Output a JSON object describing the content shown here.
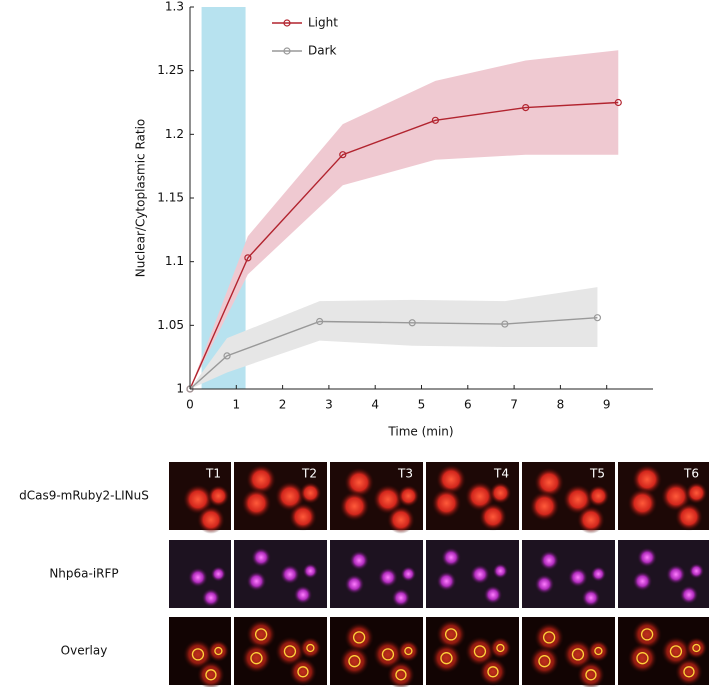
{
  "chart_data": {
    "type": "line",
    "xlabel": "Time (min)",
    "ylabel": "Nuclear/Cytoplasmic Ratio",
    "xlim": [
      0,
      10
    ],
    "xticks": [
      0,
      1,
      2,
      3,
      4,
      5,
      6,
      7,
      8,
      9
    ],
    "ylim": [
      1,
      1.3
    ],
    "yticks": [
      1,
      1.05,
      1.1,
      1.15,
      1.2,
      1.25,
      1.3
    ],
    "legend": "upper left",
    "light_span": [
      0.25,
      1.2
    ],
    "light_span_color": "#b7e2ef",
    "series": [
      {
        "name": "Light",
        "color": "#b2242f",
        "band_color": "#efc9d1",
        "x": [
          0,
          1.25,
          3.3,
          5.3,
          7.25,
          9.25
        ],
        "values": [
          1,
          1.103,
          1.184,
          1.211,
          1.221,
          1.225
        ],
        "lower": [
          1,
          1.09,
          1.16,
          1.18,
          1.184,
          1.184
        ],
        "upper": [
          1,
          1.12,
          1.208,
          1.242,
          1.258,
          1.266
        ]
      },
      {
        "name": "Dark",
        "color": "#999999",
        "band_color": "#e6e6e6",
        "x": [
          0,
          0.8,
          2.8,
          4.8,
          6.8,
          8.8
        ],
        "values": [
          1,
          1.026,
          1.053,
          1.052,
          1.051,
          1.056
        ],
        "lower": [
          1,
          1.013,
          1.038,
          1.034,
          1.033,
          1.033
        ],
        "upper": [
          1,
          1.04,
          1.069,
          1.07,
          1.069,
          1.08
        ]
      }
    ]
  },
  "image_panel": {
    "columns": [
      "T1",
      "T2",
      "T3",
      "T4",
      "T5",
      "T6"
    ],
    "rows": [
      "dCas9-mRuby2-LINuS",
      "Nhp6a-iRFP",
      "Overlay"
    ]
  }
}
